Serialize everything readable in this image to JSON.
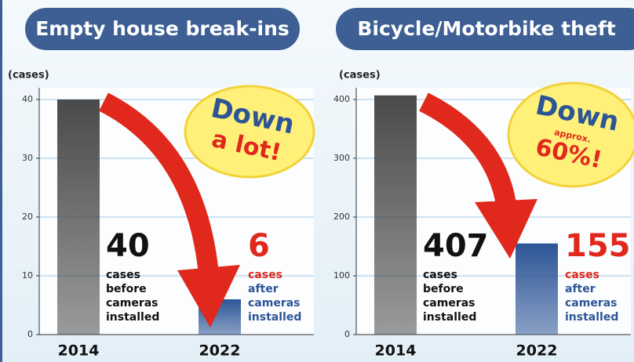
{
  "chart_data": [
    {
      "type": "bar",
      "title": "Empty house break-ins",
      "y_label": "(cases)",
      "categories": [
        "2014",
        "2022"
      ],
      "values": [
        40,
        6
      ],
      "colors": [
        "#4a4a4a",
        "#2d5596"
      ],
      "value_label_colors": [
        "#111111",
        "#e0281c"
      ],
      "bar_notes": [
        [
          "cases",
          "before",
          "cameras",
          "installed"
        ],
        [
          "cases",
          "after",
          "cameras",
          "installed"
        ]
      ],
      "badge": [
        "Down",
        "a lot!"
      ],
      "ylim": [
        0,
        42
      ],
      "yticks": [
        0,
        10,
        20,
        30,
        40
      ],
      "grid": true
    },
    {
      "type": "bar",
      "title": "Bicycle/Motorbike theft",
      "y_label": "(cases)",
      "categories": [
        "2014",
        "2022"
      ],
      "values": [
        407,
        155
      ],
      "colors": [
        "#4a4a4a",
        "#2d5596"
      ],
      "value_label_colors": [
        "#111111",
        "#e0281c"
      ],
      "bar_notes": [
        [
          "cases",
          "before",
          "cameras",
          "installed"
        ],
        [
          "cases",
          "after",
          "cameras",
          "installed"
        ]
      ],
      "badge": [
        "Down",
        "approx.",
        "60%!"
      ],
      "ylim": [
        0,
        420
      ],
      "yticks": [
        0,
        100,
        200,
        300,
        400
      ],
      "grid": true
    }
  ]
}
